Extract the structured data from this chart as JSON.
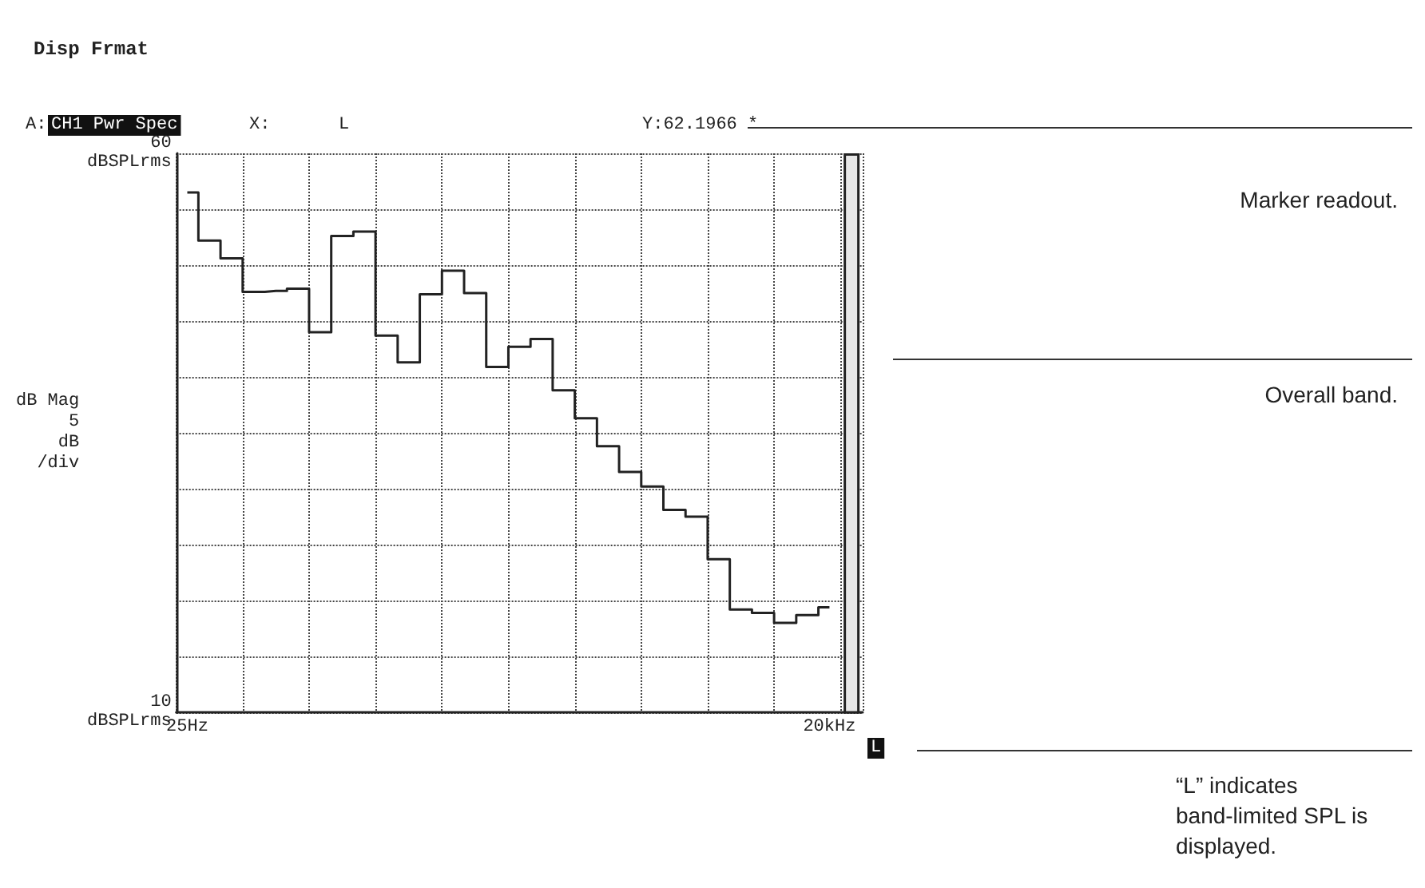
{
  "chart_data": {
    "type": "step",
    "title": "Disp Frmat",
    "ylabel": "dB Mag\n5\ndB\n/div",
    "categories": [
      "25Hz",
      null,
      null,
      null,
      null,
      null,
      null,
      null,
      null,
      null,
      null,
      null,
      null,
      null,
      null,
      null,
      null,
      null,
      null,
      null,
      null,
      null,
      null,
      null,
      null,
      null,
      null,
      null,
      null,
      "20kHz",
      null
    ],
    "series": [
      {
        "color": "#222222",
        "values": [
          56.5,
          52.2,
          50.6,
          47.6,
          47.7,
          47.9,
          44.0,
          52.6,
          53.0,
          43.7,
          41.3,
          47.4,
          49.5,
          47.5,
          40.9,
          42.7,
          43.4,
          38.8,
          36.3,
          33.8,
          31.5,
          30.2,
          28.1,
          27.5,
          23.7,
          19.2,
          18.9,
          18.0,
          18.7,
          19.4,
          null
        ]
      },
      {
        "type": "bar",
        "color": "#e8e8e8",
        "values": [
          null,
          null,
          null,
          null,
          null,
          null,
          null,
          null,
          null,
          null,
          null,
          null,
          null,
          null,
          null,
          null,
          null,
          null,
          null,
          null,
          null,
          null,
          null,
          null,
          null,
          null,
          null,
          null,
          null,
          null,
          60
        ]
      }
    ],
    "ylim": [
      10,
      60
    ],
    "yticks": [
      {
        "value": 10,
        "label": "10\ndBSPLrms"
      },
      {
        "value": 15,
        "label": null
      },
      {
        "value": 20,
        "label": null
      },
      {
        "value": 25,
        "label": null
      },
      {
        "value": 30,
        "label": null
      },
      {
        "value": 35,
        "label": null
      },
      {
        "value": 40,
        "label": null
      },
      {
        "value": 45,
        "label": null
      },
      {
        "value": 50,
        "label": null
      },
      {
        "value": 55,
        "label": null
      },
      {
        "value": 60,
        "label": "60\ndBSPLrms"
      }
    ],
    "grid": true,
    "line_style": "solid",
    "marker": "none",
    "annotations": [
      "A:",
      "CH1 Pwr Spec",
      "X:",
      "L",
      "Y:62.1966 *",
      "L",
      "Marker readout.",
      "Overall band.",
      "“L” indicates\nband-limited SPL is\ndisplayed."
    ]
  }
}
